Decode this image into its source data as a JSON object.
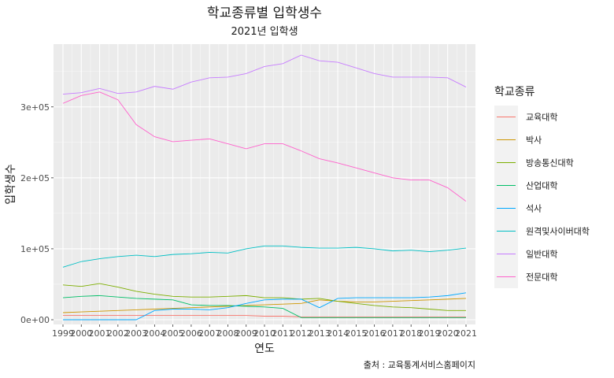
{
  "chart_data": {
    "type": "line",
    "title": "학교종류별 입학생수",
    "subtitle": "2021년 입학생",
    "xlabel": "연도",
    "ylabel": "입학생수",
    "caption": "출처 : 교육통계서비스홈페이지",
    "legend_title": "학교종류",
    "legend_position": "right",
    "grid": true,
    "xlim": [
      1999,
      2021
    ],
    "ylim": [
      0,
      390000
    ],
    "y_ticks": [
      {
        "value": 0,
        "label": "0e+00"
      },
      {
        "value": 100000,
        "label": "1e+05"
      },
      {
        "value": 200000,
        "label": "2e+05"
      },
      {
        "value": 300000,
        "label": "3e+05"
      }
    ],
    "x": [
      1999,
      2000,
      2001,
      2002,
      2003,
      2004,
      2005,
      2006,
      2007,
      2008,
      2009,
      2010,
      2011,
      2012,
      2013,
      2014,
      2015,
      2016,
      2017,
      2018,
      2019,
      2020,
      2021
    ],
    "x_tick_labels": [
      "1999",
      "2000",
      "2001",
      "2002",
      "2003",
      "2004",
      "2005",
      "2006",
      "2007",
      "2008",
      "2009",
      "2010",
      "2011",
      "2012",
      "2013",
      "2014",
      "2015",
      "2016",
      "2017",
      "2018",
      "2019",
      "2020",
      "2021"
    ],
    "series": [
      {
        "name": "교육대학",
        "color": "#F8766D",
        "values": [
          6000,
          6000,
          6000,
          6000,
          6000,
          6000,
          6000,
          6000,
          6000,
          6000,
          6000,
          5000,
          5000,
          4000,
          4000,
          4000,
          4000,
          4000,
          4000,
          4000,
          4000,
          4000,
          4000
        ]
      },
      {
        "name": "박사",
        "color": "#CD9600",
        "values": [
          10000,
          11000,
          12000,
          13000,
          14000,
          15000,
          16000,
          17000,
          18000,
          19000,
          20000,
          21000,
          22000,
          23000,
          28000,
          26000,
          25000,
          25000,
          26000,
          27000,
          28000,
          29000,
          30000
        ]
      },
      {
        "name": "방송통신대학",
        "color": "#7CAE00",
        "values": [
          49000,
          47000,
          51000,
          46000,
          40000,
          36000,
          33000,
          32000,
          32000,
          33000,
          34000,
          31000,
          31000,
          29000,
          30000,
          26000,
          23000,
          20000,
          18000,
          17000,
          15000,
          13000,
          13000
        ]
      },
      {
        "name": "산업대학",
        "color": "#00BE67",
        "values": [
          31000,
          33000,
          34000,
          32000,
          30000,
          29000,
          28000,
          21000,
          20000,
          20000,
          19000,
          18000,
          16000,
          3000,
          3000,
          3000,
          3000,
          3000,
          3000,
          3000,
          3000,
          3000,
          3000
        ]
      },
      {
        "name": "석사",
        "color": "#00A9FF",
        "values": [
          0,
          0,
          0,
          0,
          0,
          13000,
          15000,
          15000,
          14000,
          17000,
          23000,
          28000,
          29000,
          29000,
          17000,
          30000,
          31000,
          31000,
          31000,
          31000,
          32000,
          34000,
          38000
        ]
      },
      {
        "name": "원격및사이버대학",
        "color": "#00BFC4",
        "values": [
          74000,
          82000,
          86000,
          89000,
          91000,
          89000,
          92000,
          93000,
          95000,
          94000,
          100000,
          104000,
          104000,
          102000,
          101000,
          101000,
          102000,
          100000,
          97000,
          98000,
          96000,
          98000,
          101000
        ]
      },
      {
        "name": "일반대학",
        "color": "#C77CFF",
        "values": [
          318000,
          320000,
          326000,
          319000,
          321000,
          329000,
          325000,
          335000,
          341000,
          342000,
          347000,
          357000,
          361000,
          373000,
          365000,
          363000,
          355000,
          347000,
          342000,
          342000,
          342000,
          341000,
          328000
        ]
      },
      {
        "name": "전문대학",
        "color": "#FF61CC",
        "values": [
          305000,
          316000,
          321000,
          310000,
          275000,
          258000,
          251000,
          253000,
          255000,
          248000,
          241000,
          248000,
          248000,
          238000,
          227000,
          221000,
          214000,
          207000,
          200000,
          197000,
          197000,
          186000,
          167000
        ]
      }
    ]
  }
}
